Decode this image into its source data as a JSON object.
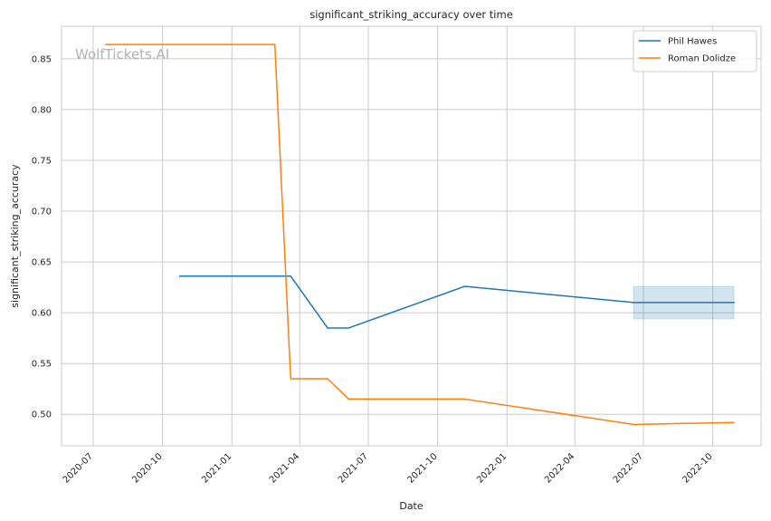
{
  "chart_data": {
    "type": "line",
    "title": "significant_striking_accuracy over time",
    "xlabel": "Date",
    "ylabel": "significant_striking_accuracy",
    "watermark": "WolfTickets.AI",
    "x_ticks": [
      "2020-07",
      "2020-10",
      "2021-01",
      "2021-04",
      "2021-07",
      "2021-10",
      "2022-01",
      "2022-04",
      "2022-07",
      "2022-10"
    ],
    "y_ticks": [
      "0.50",
      "0.55",
      "0.60",
      "0.65",
      "0.70",
      "0.75",
      "0.80",
      "0.85"
    ],
    "xlim": [
      "2020-05-20",
      "2022-12-04"
    ],
    "ylim": [
      0.469,
      0.882
    ],
    "grid": true,
    "legend_position": "top-right",
    "series": [
      {
        "name": "Phil Hawes",
        "color": "#1f77b4",
        "x": [
          "2020-10-24",
          "2021-03-20",
          "2021-05-08",
          "2021-06-05",
          "2021-11-06",
          "2022-06-18",
          "2022-10-29"
        ],
        "y": [
          0.636,
          0.636,
          0.585,
          0.585,
          0.626,
          0.61,
          0.61
        ],
        "band": {
          "x": [
            "2022-06-18",
            "2022-10-29"
          ],
          "lower": [
            0.594,
            0.594
          ],
          "upper": [
            0.626,
            0.626
          ]
        }
      },
      {
        "name": "Roman Dolidze",
        "color": "#ff7f0e",
        "x": [
          "2020-07-18",
          "2021-02-27",
          "2021-03-20",
          "2021-05-08",
          "2021-06-05",
          "2021-11-06",
          "2022-06-18",
          "2022-10-29"
        ],
        "y": [
          0.864,
          0.864,
          0.535,
          0.535,
          0.515,
          0.515,
          0.49,
          0.492
        ]
      }
    ]
  }
}
